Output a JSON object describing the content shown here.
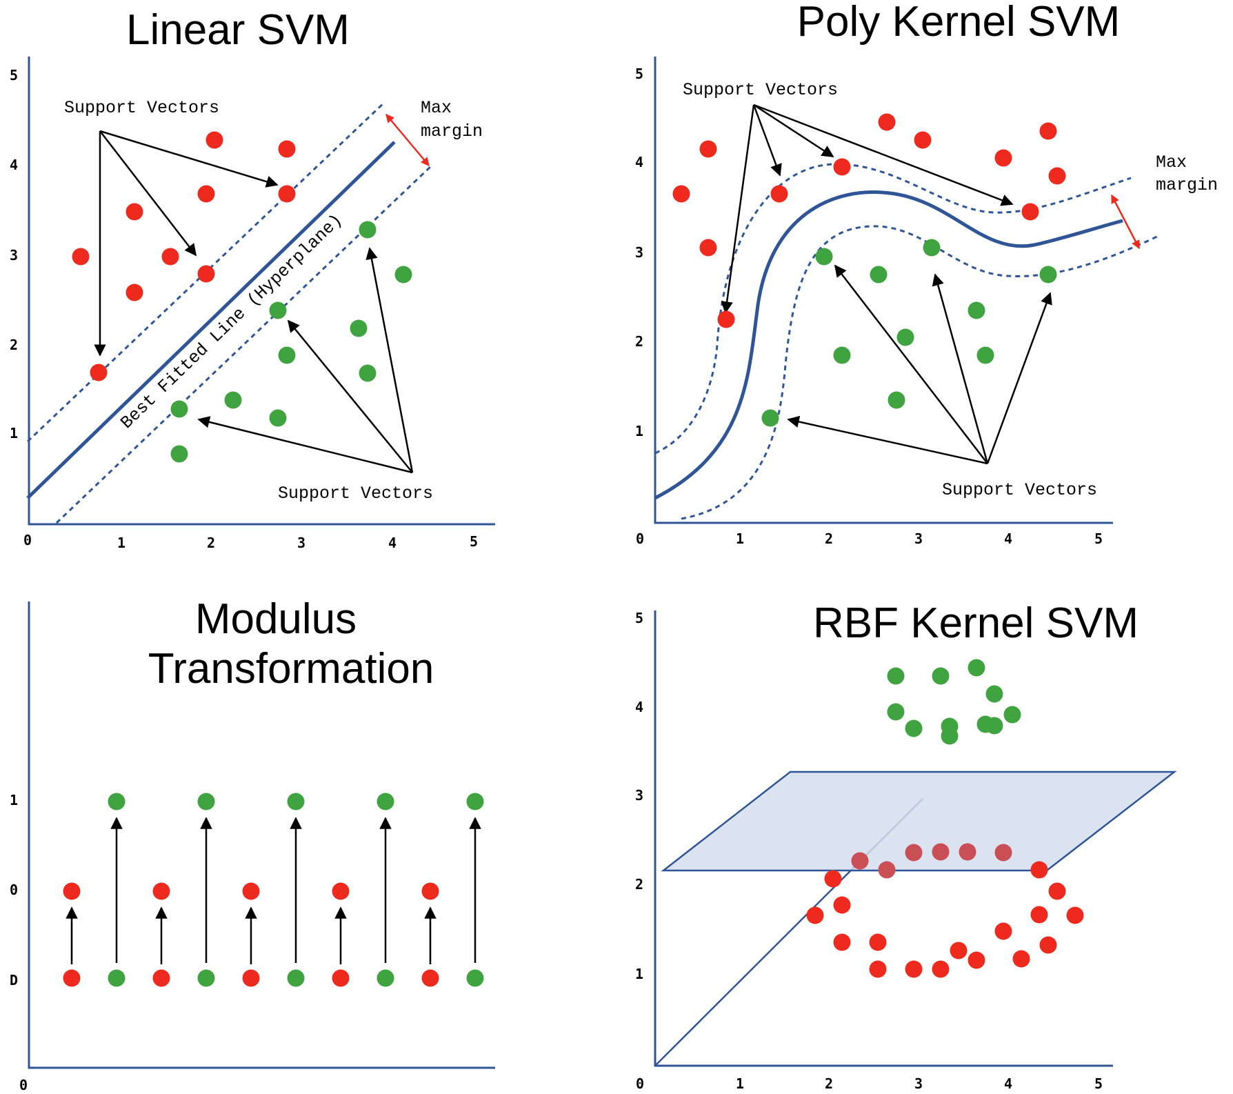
{
  "colors": {
    "red": "#ee2a1f",
    "green": "#3fa33f",
    "pinkish": "#c94f55",
    "axis": "#2f5597",
    "plane": "#d3deec"
  },
  "panels": {
    "linear": {
      "title": "Linear SVM",
      "x_ticks": [
        "0",
        "1",
        "2",
        "3",
        "4",
        "5"
      ],
      "y_ticks": [
        "1",
        "2",
        "3",
        "4",
        "5"
      ],
      "support_vectors_top": "Support Vectors",
      "support_vectors_bottom": "Support Vectors",
      "max": "Max",
      "margin": "margin",
      "hyperplane_label": "Best Fitted Line (Hyperplane)"
    },
    "poly": {
      "title": "Poly Kernel SVM",
      "x_ticks": [
        "0",
        "1",
        "2",
        "3",
        "4",
        "5"
      ],
      "y_ticks": [
        "1",
        "2",
        "3",
        "4",
        "5"
      ],
      "support_vectors_top": "Support Vectors",
      "support_vectors_bottom": "Support Vectors",
      "max": "Max",
      "margin": "margin"
    },
    "modulus": {
      "title_line1": "Modulus",
      "title_line2": "Transformation",
      "x_ticks": [
        "0"
      ],
      "y_ticks": [
        "D",
        "0",
        "1"
      ]
    },
    "rbf": {
      "title": "RBF Kernel SVM",
      "x_ticks": [
        "0",
        "1",
        "2",
        "3",
        "4",
        "5"
      ],
      "y_ticks": [
        "1",
        "2",
        "3",
        "4",
        "5"
      ]
    }
  }
}
